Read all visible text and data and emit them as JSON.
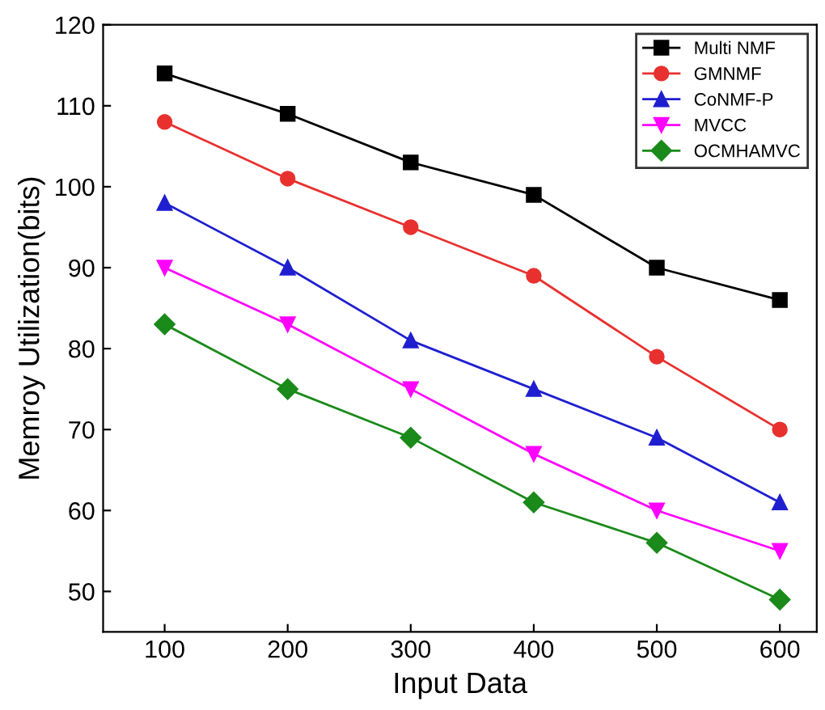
{
  "chart_data": {
    "type": "line",
    "xlabel": "Input Data",
    "ylabel": "Memroy Utilization(bits)",
    "x": [
      100,
      200,
      300,
      400,
      500,
      600
    ],
    "series": [
      {
        "name": "Multi NMF",
        "color": "#000000",
        "marker": "square",
        "values": [
          114,
          109,
          103,
          99,
          90,
          86
        ]
      },
      {
        "name": "GMNMF",
        "color": "#e8312f",
        "marker": "circle",
        "values": [
          108,
          101,
          95,
          89,
          79,
          70
        ]
      },
      {
        "name": "CoNMF-P",
        "color": "#1f1fd0",
        "marker": "triangle",
        "values": [
          98,
          90,
          81,
          75,
          69,
          61
        ]
      },
      {
        "name": "MVCC",
        "color": "#ff00ff",
        "marker": "triangle_down",
        "values": [
          90,
          83,
          75,
          67,
          60,
          55
        ]
      },
      {
        "name": "OCMHAMVC",
        "color": "#1a8a1a",
        "marker": "diamond",
        "values": [
          83,
          75,
          69,
          61,
          56,
          49
        ]
      }
    ],
    "xlim": [
      50,
      630
    ],
    "ylim": [
      45,
      120
    ],
    "xticks": [
      100,
      200,
      300,
      400,
      500,
      600
    ],
    "yticks": [
      50,
      60,
      70,
      80,
      90,
      100,
      110,
      120
    ],
    "grid": false,
    "legend": "top right",
    "line_style": "solid"
  }
}
